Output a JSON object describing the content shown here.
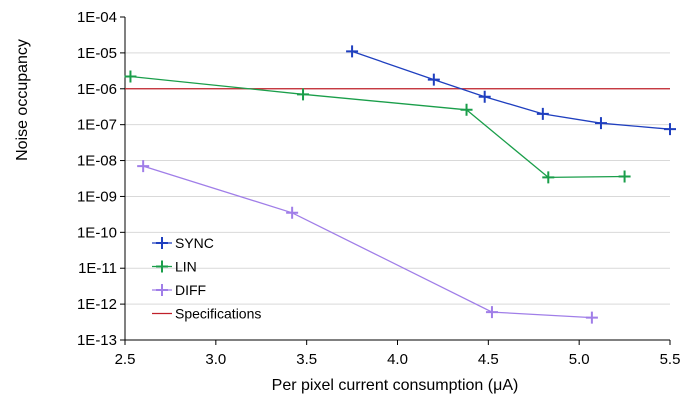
{
  "chart_data": {
    "type": "line",
    "title": "",
    "xlabel": "Per pixel current consumption (μA)",
    "ylabel": "Noise occupancy",
    "xlim": [
      2.5,
      5.5
    ],
    "ylim": [
      1e-13,
      0.0001
    ],
    "y_scale": "log",
    "x_ticks": [
      "2.5",
      "3.0",
      "3.5",
      "4.0",
      "4.5",
      "5.0",
      "5.5"
    ],
    "y_ticks": [
      "1E-04",
      "1E-05",
      "1E-06",
      "1E-07",
      "1E-08",
      "1E-09",
      "1E-10",
      "1E-11",
      "1E-12",
      "1E-13"
    ],
    "grid": true,
    "legend_position": "bottom-left",
    "series": [
      {
        "name": "SYNC",
        "color": "#1f3fbf",
        "x": [
          3.75,
          4.2,
          4.48,
          4.8,
          5.12,
          5.5
        ],
        "y": [
          1.1e-05,
          1.8e-06,
          6e-07,
          2e-07,
          1.1e-07,
          7.5e-08
        ]
      },
      {
        "name": "LIN",
        "color": "#1a9e4a",
        "x": [
          2.53,
          3.48,
          4.38,
          4.83,
          5.25
        ],
        "y": [
          2.2e-06,
          7e-07,
          2.6e-07,
          3.4e-09,
          3.6e-09
        ]
      },
      {
        "name": "DIFF",
        "color": "#a07ee8",
        "x": [
          2.6,
          3.42,
          4.52,
          5.07
        ],
        "y": [
          7e-09,
          3.5e-10,
          6e-13,
          4.2e-13
        ]
      }
    ],
    "reference_lines": [
      {
        "name": "Specifications",
        "color": "#c0202a",
        "y": 1e-06
      }
    ]
  }
}
